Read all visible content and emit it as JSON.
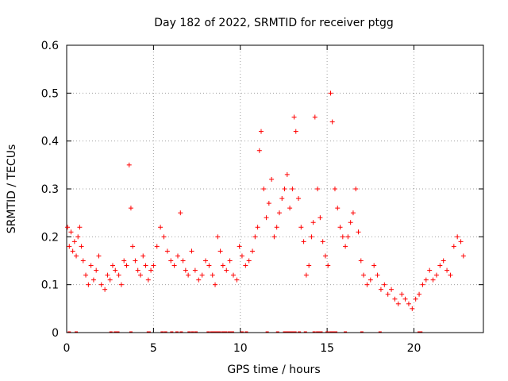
{
  "chart_data": {
    "type": "scatter",
    "title": "Day 182 of 2022, SRMTID for receiver ptgg",
    "xlabel": "GPS time / hours",
    "ylabel": "SRMTID / TECUs",
    "xlim": [
      0,
      24
    ],
    "ylim": [
      0,
      0.6
    ],
    "x_ticks": [
      "0",
      "5",
      "10",
      "15",
      "20"
    ],
    "y_ticks": [
      "0",
      "0.1",
      "0.2",
      "0.3",
      "0.4",
      "0.5",
      "0.6"
    ],
    "grid": true,
    "legend": "none",
    "marker": "plus",
    "color": "#ff0000",
    "series": [
      {
        "name": "SRMTID",
        "x": [
          0.05,
          0.15,
          0.25,
          0.35,
          0.45,
          0.55,
          0.65,
          0.75,
          0.85,
          0.95,
          1.1,
          1.25,
          1.4,
          1.55,
          1.7,
          1.85,
          2.0,
          2.2,
          2.35,
          2.5,
          2.65,
          2.8,
          3.0,
          3.15,
          3.3,
          3.45,
          3.6,
          3.7,
          3.8,
          3.95,
          4.1,
          4.25,
          4.4,
          4.55,
          4.7,
          4.85,
          5.0,
          5.2,
          5.4,
          5.6,
          5.8,
          6.0,
          6.2,
          6.4,
          6.55,
          6.7,
          6.85,
          7.0,
          7.2,
          7.4,
          7.6,
          7.8,
          8.0,
          8.2,
          8.4,
          8.55,
          8.7,
          8.85,
          9.0,
          9.2,
          9.4,
          9.6,
          9.8,
          9.95,
          10.1,
          10.3,
          10.5,
          10.7,
          10.85,
          11.0,
          11.1,
          11.2,
          11.35,
          11.5,
          11.65,
          11.8,
          11.95,
          12.1,
          12.25,
          12.4,
          12.55,
          12.7,
          12.85,
          13.0,
          13.1,
          13.2,
          13.35,
          13.5,
          13.65,
          13.8,
          13.95,
          14.1,
          14.2,
          14.3,
          14.45,
          14.6,
          14.75,
          14.9,
          15.05,
          15.2,
          15.3,
          15.45,
          15.6,
          15.75,
          15.9,
          16.05,
          16.2,
          16.35,
          16.5,
          16.65,
          16.8,
          16.95,
          17.1,
          17.3,
          17.5,
          17.7,
          17.9,
          18.1,
          18.3,
          18.5,
          18.7,
          18.9,
          19.1,
          19.3,
          19.5,
          19.7,
          19.9,
          20.1,
          20.3,
          20.5,
          20.7,
          20.9,
          21.1,
          21.3,
          21.5,
          21.7,
          21.9,
          22.1,
          22.3,
          22.5,
          22.7,
          22.85
        ],
        "y": [
          0.22,
          0.18,
          0.21,
          0.17,
          0.19,
          0.16,
          0.2,
          0.22,
          0.18,
          0.15,
          0.12,
          0.1,
          0.14,
          0.11,
          0.13,
          0.16,
          0.1,
          0.09,
          0.12,
          0.11,
          0.14,
          0.13,
          0.12,
          0.1,
          0.15,
          0.14,
          0.35,
          0.26,
          0.18,
          0.15,
          0.13,
          0.12,
          0.16,
          0.14,
          0.11,
          0.13,
          0.14,
          0.18,
          0.22,
          0.2,
          0.17,
          0.15,
          0.14,
          0.16,
          0.25,
          0.15,
          0.13,
          0.12,
          0.17,
          0.13,
          0.11,
          0.12,
          0.15,
          0.14,
          0.12,
          0.1,
          0.2,
          0.17,
          0.14,
          0.13,
          0.15,
          0.12,
          0.11,
          0.18,
          0.16,
          0.14,
          0.15,
          0.17,
          0.2,
          0.22,
          0.38,
          0.42,
          0.3,
          0.24,
          0.27,
          0.32,
          0.2,
          0.22,
          0.25,
          0.28,
          0.3,
          0.33,
          0.26,
          0.3,
          0.45,
          0.42,
          0.28,
          0.22,
          0.19,
          0.12,
          0.14,
          0.2,
          0.23,
          0.45,
          0.3,
          0.24,
          0.19,
          0.16,
          0.14,
          0.5,
          0.44,
          0.3,
          0.26,
          0.22,
          0.2,
          0.18,
          0.2,
          0.23,
          0.25,
          0.3,
          0.21,
          0.15,
          0.12,
          0.1,
          0.11,
          0.14,
          0.12,
          0.09,
          0.1,
          0.08,
          0.09,
          0.07,
          0.06,
          0.08,
          0.07,
          0.06,
          0.05,
          0.07,
          0.08,
          0.1,
          0.11,
          0.13,
          0.11,
          0.12,
          0.14,
          0.15,
          0.13,
          0.12,
          0.18,
          0.2,
          0.19,
          0.16
        ]
      }
    ],
    "flagged_x": [
      0.15,
      0.55,
      2.55,
      2.8,
      2.95,
      3.7,
      4.7,
      4.75,
      5.5,
      5.7,
      6.05,
      6.35,
      6.6,
      7.05,
      7.25,
      7.45,
      8.15,
      8.35,
      8.45,
      8.55,
      8.65,
      8.8,
      9.0,
      9.15,
      9.35,
      9.45,
      9.55,
      10.1,
      10.35,
      11.55,
      12.15,
      12.55,
      12.7,
      12.85,
      13.0,
      13.15,
      13.4,
      13.75,
      14.25,
      14.45,
      14.55,
      14.65,
      15.0,
      15.2,
      15.35,
      15.5,
      16.05,
      17.0,
      18.05,
      20.3,
      20.4
    ]
  }
}
